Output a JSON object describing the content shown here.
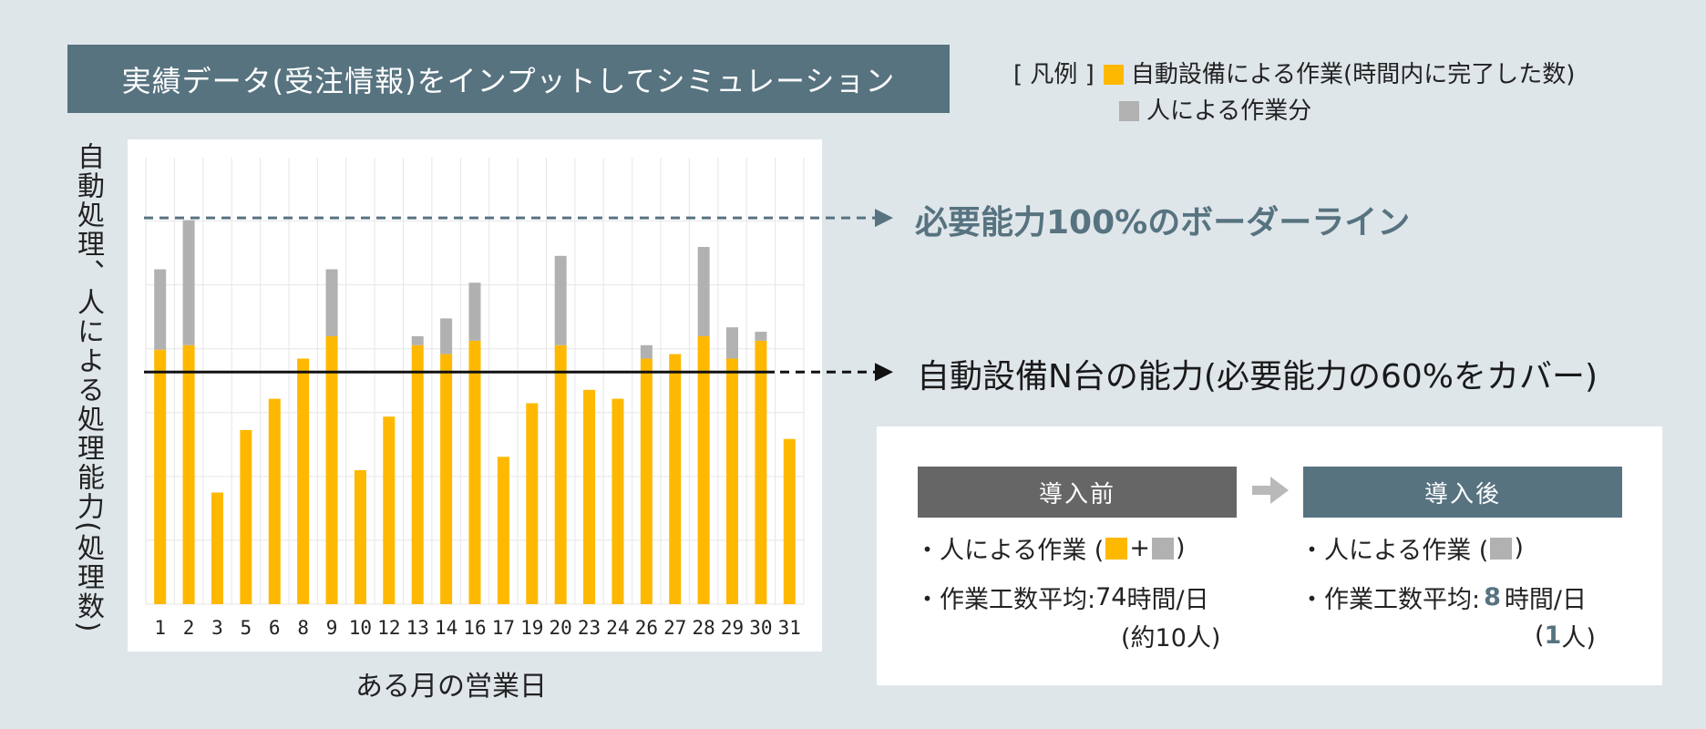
{
  "title": "実績データ(受注情報)をインプットしてシミュレーション",
  "legend": {
    "prefix": "[ 凡例 ]",
    "auto_label": "自動設備による作業(時間内に完了した数)",
    "human_label": "人による作業分"
  },
  "colors": {
    "auto": "#ffb800",
    "human": "#b1b1b1",
    "accent": "#577380",
    "dark": "#666666"
  },
  "annotations": {
    "border_line": "必要能力100%のボーダーライン",
    "capacity_line": "自動設備N台の能力(必要能力の60%をカバー)"
  },
  "before_after": {
    "before": {
      "header": "導入前",
      "work_label_pre": "・人による作業 (",
      "plus": "+",
      "work_label_post": ")",
      "avg_label": "・作業工数平均:",
      "avg_value": "74",
      "avg_unit": "時間/日",
      "people_note": "(約10人)"
    },
    "after": {
      "header": "導入後",
      "work_label_pre": "・人による作業 (",
      "work_label_post": ")",
      "avg_label": "・作業工数平均:",
      "avg_value": "8",
      "avg_unit": "時間/日",
      "people_pre": "(",
      "people_value": "1",
      "people_post": "人)"
    }
  },
  "chart_data": {
    "type": "bar",
    "stacked": true,
    "categories": [
      "1",
      "2",
      "3",
      "5",
      "6",
      "8",
      "9",
      "10",
      "12",
      "13",
      "14",
      "16",
      "17",
      "19",
      "20",
      "23",
      "24",
      "26",
      "27",
      "28",
      "29",
      "30",
      "31"
    ],
    "series": [
      {
        "name": "自動設備による作業(時間内に完了した数)",
        "color": "#ffb800",
        "values": [
          57,
          58,
          25,
          39,
          46,
          55,
          60,
          30,
          42,
          58,
          56,
          59,
          33,
          45,
          58,
          48,
          46,
          55,
          56,
          60,
          55,
          59,
          37
        ]
      },
      {
        "name": "人による作業分",
        "color": "#b1b1b1",
        "values": [
          18,
          28,
          0,
          0,
          0,
          0,
          15,
          0,
          0,
          2,
          8,
          13,
          0,
          0,
          20,
          0,
          0,
          3,
          0,
          20,
          7,
          2,
          0
        ]
      }
    ],
    "reference_lines": [
      {
        "label": "必要能力100%のボーダーライン",
        "value": 86.5,
        "style": "dashed"
      },
      {
        "label": "自動設備N台の能力(必要能力の60%をカバー)",
        "value": 52,
        "style": "solid"
      }
    ],
    "xlabel": "ある月の営業日",
    "ylabel": "自動処理、人による処理能力(処理数)",
    "ylim": [
      0,
      100
    ],
    "grid": true
  }
}
